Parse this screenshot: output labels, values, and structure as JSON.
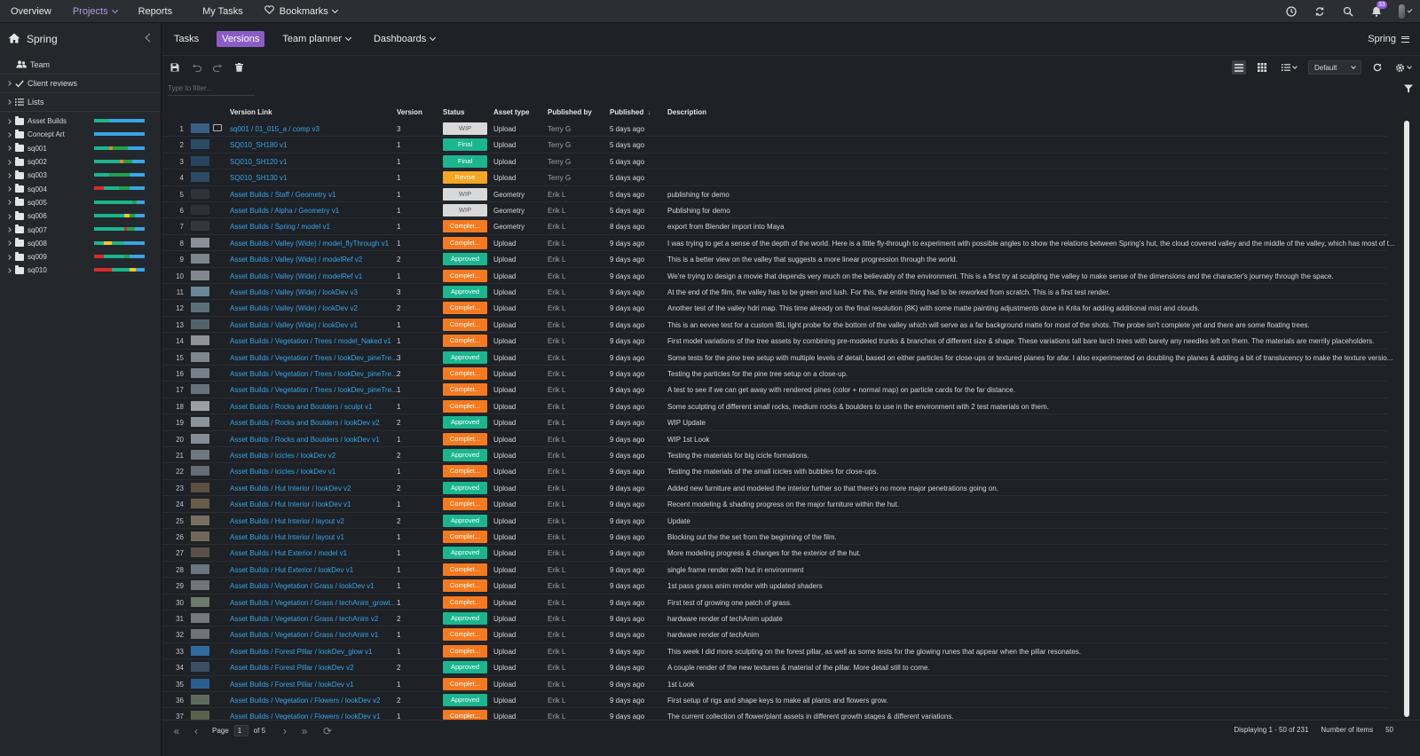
{
  "topnav": {
    "items": [
      {
        "label": "Overview",
        "dropdown": false,
        "active": false
      },
      {
        "label": "Projects",
        "dropdown": true,
        "active": true
      },
      {
        "label": "Reports",
        "dropdown": false,
        "active": false
      },
      {
        "label": "My Tasks",
        "dropdown": false,
        "active": false
      },
      {
        "label": "Bookmarks",
        "dropdown": true,
        "active": false,
        "icon": "heart-icon"
      }
    ],
    "notification_count": "33"
  },
  "sidebar": {
    "project": "Spring",
    "team_label": "Team",
    "client_reviews_label": "Client reviews",
    "lists_label": "Lists",
    "folders": [
      {
        "label": "Asset Builds",
        "progress": [
          [
            "#1bb58e",
            0.3
          ],
          [
            "#3aa5e8",
            0.7
          ]
        ]
      },
      {
        "label": "Concept Art",
        "progress": [
          [
            "#3aa5e8",
            1.0
          ]
        ]
      },
      {
        "label": "sq001",
        "progress": [
          [
            "#1bb58e",
            0.3
          ],
          [
            "#f5821f",
            0.06
          ],
          [
            "#23a14a",
            0.3
          ],
          [
            "#3aa5e8",
            0.34
          ]
        ]
      },
      {
        "label": "sq002",
        "progress": [
          [
            "#1bb58e",
            0.5
          ],
          [
            "#f5821f",
            0.08
          ],
          [
            "#23a14a",
            0.17
          ],
          [
            "#3aa5e8",
            0.25
          ]
        ]
      },
      {
        "label": "sq003",
        "progress": [
          [
            "#1bb58e",
            0.3
          ],
          [
            "#23a14a",
            0.4
          ],
          [
            "#3aa5e8",
            0.3
          ]
        ]
      },
      {
        "label": "sq004",
        "progress": [
          [
            "#d62b2b",
            0.2
          ],
          [
            "#1bb58e",
            0.3
          ],
          [
            "#23a14a",
            0.2
          ],
          [
            "#3aa5e8",
            0.3
          ]
        ]
      },
      {
        "label": "sq005",
        "progress": [
          [
            "#1bb58e",
            0.75
          ],
          [
            "#23a14a",
            0.1
          ],
          [
            "#3aa5e8",
            0.15
          ]
        ]
      },
      {
        "label": "sq006",
        "progress": [
          [
            "#1bb58e",
            0.6
          ],
          [
            "#f5c71f",
            0.1
          ],
          [
            "#23a14a",
            0.1
          ],
          [
            "#3aa5e8",
            0.2
          ]
        ]
      },
      {
        "label": "sq007",
        "progress": [
          [
            "#1bb58e",
            0.6
          ],
          [
            "#d62b2b",
            0.05
          ],
          [
            "#23a14a",
            0.15
          ],
          [
            "#3aa5e8",
            0.2
          ]
        ]
      },
      {
        "label": "sq008",
        "progress": [
          [
            "#1bb58e",
            0.2
          ],
          [
            "#f5c71f",
            0.15
          ],
          [
            "#1bb58e",
            0.25
          ],
          [
            "#3aa5e8",
            0.4
          ]
        ]
      },
      {
        "label": "sq009",
        "progress": [
          [
            "#d62b2b",
            0.2
          ],
          [
            "#1bb58e",
            0.4
          ],
          [
            "#23a14a",
            0.1
          ],
          [
            "#3aa5e8",
            0.3
          ]
        ]
      },
      {
        "label": "sq010",
        "progress": [
          [
            "#d62b2b",
            0.35
          ],
          [
            "#1bb58e",
            0.35
          ],
          [
            "#f5c71f",
            0.12
          ],
          [
            "#3aa5e8",
            0.18
          ]
        ]
      }
    ]
  },
  "subnav": {
    "tabs": [
      {
        "label": "Tasks",
        "active": false,
        "dropdown": false
      },
      {
        "label": "Versions",
        "active": true,
        "dropdown": false
      },
      {
        "label": "Team planner",
        "active": false,
        "dropdown": true
      },
      {
        "label": "Dashboards",
        "active": false,
        "dropdown": true
      }
    ],
    "project_label": "Spring"
  },
  "toolbar": {
    "view_select": "Default",
    "filter_placeholder": "Type to filter..."
  },
  "table": {
    "headers": {
      "version_link": "Version Link",
      "version": "Version",
      "status": "Status",
      "asset_type": "Asset type",
      "published_by": "Published by",
      "published": "Published",
      "description": "Description"
    },
    "sort_indicator": "↓",
    "rows": [
      {
        "n": "1",
        "link": "sq001 / 01_015_a / comp v3",
        "ver": "3",
        "status": "WIP",
        "type": "Upload",
        "by": "Terry G",
        "date": "5 days ago",
        "desc": "",
        "thumb": "#3a5f86",
        "comment": true
      },
      {
        "n": "2",
        "link": "SQ010_SH180 v1",
        "ver": "1",
        "status": "Final",
        "type": "Upload",
        "by": "Terry G",
        "date": "5 days ago",
        "desc": "",
        "thumb": "#2a4a66"
      },
      {
        "n": "3",
        "link": "SQ010_SH120 v1",
        "ver": "1",
        "status": "Final",
        "type": "Upload",
        "by": "Terry G",
        "date": "5 days ago",
        "desc": "",
        "thumb": "#274560"
      },
      {
        "n": "4",
        "link": "SQ010_SH130 v1",
        "ver": "1",
        "status": "Revise",
        "type": "Upload",
        "by": "Terry G",
        "date": "5 days ago",
        "desc": "",
        "thumb": "#2c4a63"
      },
      {
        "n": "5",
        "link": "Asset Builds / Staff / Geometry v1",
        "ver": "1",
        "status": "WIP",
        "type": "Geometry",
        "by": "Erik L",
        "date": "5 days ago",
        "desc": "publishing for demo",
        "thumb": "#303338"
      },
      {
        "n": "6",
        "link": "Asset Builds / Alpha / Geometry v1",
        "ver": "1",
        "status": "WIP",
        "type": "Geometry",
        "by": "Erik L",
        "date": "5 days ago",
        "desc": "Publishing for demo",
        "thumb": "#2e3136"
      },
      {
        "n": "7",
        "link": "Asset Builds / Spring / model v1",
        "ver": "1",
        "status": "Complet...",
        "type": "Geometry",
        "by": "Erik L",
        "date": "8 days ago",
        "desc": "export from Blender import into Maya",
        "thumb": "#34373c"
      },
      {
        "n": "8",
        "link": "Asset Builds / Valley (Wide) / model_flyThrough v1",
        "ver": "1",
        "status": "Complet...",
        "type": "Upload",
        "by": "Erik L",
        "date": "9 days ago",
        "desc": "I was trying to get a sense of the depth of the world. Here is a little fly-through to experiment with possible angles to show the relations between Spring's hut, the cloud covered valley and the middle of the valley, which has most of t...",
        "thumb": "#8a9099"
      },
      {
        "n": "9",
        "link": "Asset Builds / Valley (Wide) / modelRef v2",
        "ver": "2",
        "status": "Approved",
        "type": "Upload",
        "by": "Erik L",
        "date": "9 days ago",
        "desc": "This is a better view on the valley that suggests a more linear progression through the world.",
        "thumb": "#7d848c"
      },
      {
        "n": "10",
        "link": "Asset Builds / Valley (Wide) / modelRef v1",
        "ver": "1",
        "status": "Complet...",
        "type": "Upload",
        "by": "Erik L",
        "date": "9 days ago",
        "desc": "We're trying to design a movie that depends very much on the believably of the environment. This is a first try at sculpting the valley to make sense of the dimensions and the character's journey through the space.",
        "thumb": "#80878f"
      },
      {
        "n": "11",
        "link": "Asset Builds / Valley (Wide) / lookDev v3",
        "ver": "3",
        "status": "Approved",
        "type": "Upload",
        "by": "Erik L",
        "date": "9 days ago",
        "desc": "At the end of the film, the valley has to be green and lush. For this, the entire thing had to be reworked from scratch. This is a first test render.",
        "thumb": "#6b8696"
      },
      {
        "n": "12",
        "link": "Asset Builds / Valley (Wide) / lookDev v2",
        "ver": "2",
        "status": "Complet...",
        "type": "Upload",
        "by": "Erik L",
        "date": "9 days ago",
        "desc": "Another test of the valley hdri map. This time already on the final resolution (8K) with some matte painting adjustments done in Krita for adding additional mist and clouds.",
        "thumb": "#5c6f7a"
      },
      {
        "n": "13",
        "link": "Asset Builds / Valley (Wide) / lookDev v1",
        "ver": "1",
        "status": "Complet...",
        "type": "Upload",
        "by": "Erik L",
        "date": "9 days ago",
        "desc": "This is an eevee test for a custom IBL light probe for the bottom of the valley which will serve as a far background matte for most of the shots. The probe isn't complete yet and there are some floating trees.",
        "thumb": "#53636d"
      },
      {
        "n": "14",
        "link": "Asset Builds / Vegetation / Trees / model_Naked v1",
        "ver": "1",
        "status": "Complet...",
        "type": "Upload",
        "by": "Erik L",
        "date": "9 days ago",
        "desc": "First model variations of the tree assets by combining pre-modeled trunks & branches of different size & shape. These variations tall bare larch trees with barely any needles left on them. The materials are merrily placeholders.",
        "thumb": "#8e9399"
      },
      {
        "n": "15",
        "link": "Asset Builds / Vegetation / Trees / lookDev_pineTre...",
        "ver": "3",
        "status": "Approved",
        "type": "Upload",
        "by": "Erik L",
        "date": "9 days ago",
        "desc": "Some tests for the pine tree setup with multiple levels of detail, based on either particles for close-ups or textured planes for afar. I also experimented on doubling the planes & adding a bit of translucency to make the texture versio...",
        "thumb": "#7e8790"
      },
      {
        "n": "16",
        "link": "Asset Builds / Vegetation / Trees / lookDev_pineTre...",
        "ver": "2",
        "status": "Complet...",
        "type": "Upload",
        "by": "Erik L",
        "date": "9 days ago",
        "desc": "Testing the particles for the pine tree setup on a close-up.",
        "thumb": "#75808a"
      },
      {
        "n": "17",
        "link": "Asset Builds / Vegetation / Trees / lookDev_pineTre...",
        "ver": "1",
        "status": "Complet...",
        "type": "Upload",
        "by": "Erik L",
        "date": "9 days ago",
        "desc": "A test to see if we can get away with rendered pines (color + normal map) on particle cards for the far distance.",
        "thumb": "#66737e"
      },
      {
        "n": "18",
        "link": "Asset Builds / Rocks and Boulders / sculpt v1",
        "ver": "1",
        "status": "Complet...",
        "type": "Upload",
        "by": "Erik L",
        "date": "9 days ago",
        "desc": "Some sculpting of different small rocks, medium rocks & boulders to use in the environment with 2 test materials on them.",
        "thumb": "#9aa0a6"
      },
      {
        "n": "19",
        "link": "Asset Builds / Rocks and Boulders / lookDev v2",
        "ver": "2",
        "status": "Approved",
        "type": "Upload",
        "by": "Erik L",
        "date": "9 days ago",
        "desc": "WIP Update",
        "thumb": "#8d939a"
      },
      {
        "n": "20",
        "link": "Asset Builds / Rocks and Boulders / lookDev v1",
        "ver": "1",
        "status": "Complet...",
        "type": "Upload",
        "by": "Erik L",
        "date": "9 days ago",
        "desc": "WIP 1st Look",
        "thumb": "#868c93"
      },
      {
        "n": "21",
        "link": "Asset Builds / Icicles / lookDev v2",
        "ver": "2",
        "status": "Approved",
        "type": "Upload",
        "by": "Erik L",
        "date": "9 days ago",
        "desc": "Testing the materials for big icicle formations.",
        "thumb": "#6f7780"
      },
      {
        "n": "22",
        "link": "Asset Builds / Icicles / lookDev v1",
        "ver": "1",
        "status": "Complet...",
        "type": "Upload",
        "by": "Erik L",
        "date": "9 days ago",
        "desc": "Testing the materials of the small icicles with bubbles for close-ups.",
        "thumb": "#646c75"
      },
      {
        "n": "23",
        "link": "Asset Builds / Hut Interior / lookDev v2",
        "ver": "2",
        "status": "Approved",
        "type": "Upload",
        "by": "Erik L",
        "date": "9 days ago",
        "desc": "Added new furniture and modeled the interior further so that there's no more major penetrations going on.",
        "thumb": "#5e4f40"
      },
      {
        "n": "24",
        "link": "Asset Builds / Hut Interior / lookDev v1",
        "ver": "1",
        "status": "Complet...",
        "type": "Upload",
        "by": "Erik L",
        "date": "9 days ago",
        "desc": "Recent modeling & shading progress on the major furniture within the hut.",
        "thumb": "#6a5a4a"
      },
      {
        "n": "25",
        "link": "Asset Builds / Hut Interior / layout v2",
        "ver": "2",
        "status": "Approved",
        "type": "Upload",
        "by": "Erik L",
        "date": "9 days ago",
        "desc": "Update",
        "thumb": "#7a6e63"
      },
      {
        "n": "26",
        "link": "Asset Builds / Hut Interior / layout v1",
        "ver": "1",
        "status": "Complet...",
        "type": "Upload",
        "by": "Erik L",
        "date": "9 days ago",
        "desc": "Blocking out the the set from the beginning of the film.",
        "thumb": "#72665c"
      },
      {
        "n": "27",
        "link": "Asset Builds / Hut Exterior / model v1",
        "ver": "1",
        "status": "Approved",
        "type": "Upload",
        "by": "Erik L",
        "date": "9 days ago",
        "desc": "More modeling progress & changes for the exterior of the hut.",
        "thumb": "#5a5048"
      },
      {
        "n": "28",
        "link": "Asset Builds / Hut Exterior / lookDev v1",
        "ver": "1",
        "status": "Complet...",
        "type": "Upload",
        "by": "Erik L",
        "date": "9 days ago",
        "desc": "single frame render with hut in environment",
        "thumb": "#6b7480"
      },
      {
        "n": "29",
        "link": "Asset Builds / Vegetation / Grass / lookDev v1",
        "ver": "1",
        "status": "Complet...",
        "type": "Upload",
        "by": "Erik L",
        "date": "9 days ago",
        "desc": "1st pass grass anim render with updated shaders",
        "thumb": "#70757a"
      },
      {
        "n": "30",
        "link": "Asset Builds / Vegetation / Grass / techAnim_growt...",
        "ver": "1",
        "status": "Complet...",
        "type": "Upload",
        "by": "Erik L",
        "date": "9 days ago",
        "desc": "First test of growing one patch of grass.",
        "thumb": "#6d7a6a"
      },
      {
        "n": "31",
        "link": "Asset Builds / Vegetation / Grass / techAnim v2",
        "ver": "2",
        "status": "Approved",
        "type": "Upload",
        "by": "Erik L",
        "date": "9 days ago",
        "desc": "hardware render of techAnim update",
        "thumb": "#75797e"
      },
      {
        "n": "32",
        "link": "Asset Builds / Vegetation / Grass / techAnim v1",
        "ver": "1",
        "status": "Complet...",
        "type": "Upload",
        "by": "Erik L",
        "date": "9 days ago",
        "desc": "hardware render of techAnim",
        "thumb": "#6f7378"
      },
      {
        "n": "33",
        "link": "Asset Builds / Forest Pillar / lookDev_glow v1",
        "ver": "1",
        "status": "Complet...",
        "type": "Upload",
        "by": "Erik L",
        "date": "9 days ago",
        "desc": "This week I did more sculpting on the forest pillar, as well as some tests for the glowing runes that appear when the pillar resonates.",
        "thumb": "#2f6aa0"
      },
      {
        "n": "34",
        "link": "Asset Builds / Forest Pillar / lookDev v2",
        "ver": "2",
        "status": "Approved",
        "type": "Upload",
        "by": "Erik L",
        "date": "9 days ago",
        "desc": "A couple render of the new textures & material of the pillar. More detail still to come.",
        "thumb": "#3b4e63"
      },
      {
        "n": "35",
        "link": "Asset Builds / Forest Pillar / lookDev v1",
        "ver": "1",
        "status": "Complet...",
        "type": "Upload",
        "by": "Erik L",
        "date": "9 days ago",
        "desc": "1st Look",
        "thumb": "#2a5e8e"
      },
      {
        "n": "36",
        "link": "Asset Builds / Vegetation / Flowers / lookDev v2",
        "ver": "2",
        "status": "Approved",
        "type": "Upload",
        "by": "Erik L",
        "date": "9 days ago",
        "desc": "First setup of rigs and shape keys to make all plants and flowers grow.",
        "thumb": "#5e6a5a"
      },
      {
        "n": "37",
        "link": "Asset Builds / Vegetation / Flowers / lookDev v1",
        "ver": "1",
        "status": "Complet...",
        "type": "Upload",
        "by": "Erik L",
        "date": "9 days ago",
        "desc": "The current collection of flower/plant assets in different growth stages & different variations.",
        "thumb": "#58624f"
      }
    ]
  },
  "status_colors": {
    "WIP": "#d9d9d9",
    "Final": "#1bb58e",
    "Revise": "#f5a623",
    "Complet...": "#f57a1f",
    "Approved": "#1bb58e"
  },
  "pager": {
    "page_label": "Page",
    "page_value": "1",
    "of_label": "of 5",
    "displaying": "Displaying 1 - 50 of 231",
    "items_label": "Number of items",
    "items_value": "50"
  }
}
